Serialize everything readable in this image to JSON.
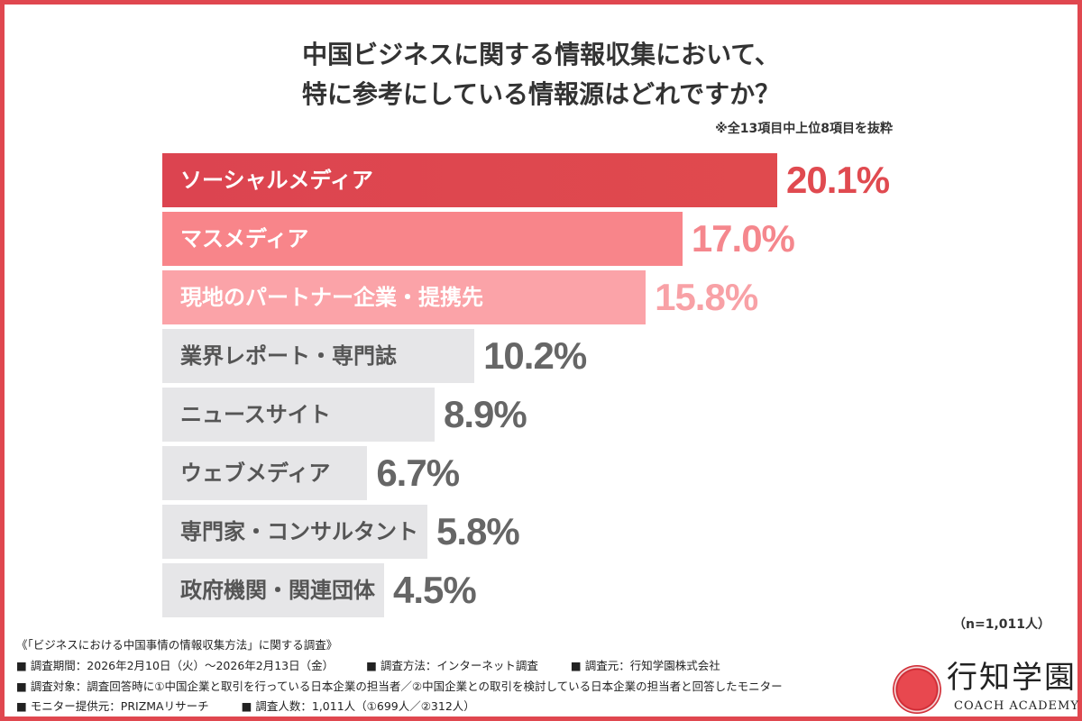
{
  "chart_data": {
    "type": "bar",
    "orientation": "horizontal",
    "title": "中国ビジネスに関する情報収集において、",
    "title_line2": "特に参考にしている情報源はどれですか？",
    "note": "※全13項目中上位8項目を抜粋",
    "categories": [
      "ソーシャルメディア",
      "マスメディア",
      "現地のパートナー企業・提携先",
      "業界レポート・専門誌",
      "ニュースサイト",
      "ウェブメディア",
      "専門家・コンサルタント",
      "政府機関・関連団体"
    ],
    "values": [
      20.1,
      17.0,
      15.8,
      10.2,
      8.9,
      6.7,
      5.8,
      4.5
    ],
    "value_labels": [
      "20.1%",
      "17.0%",
      "15.8%",
      "10.2%",
      "8.9%",
      "6.7%",
      "5.8%",
      "4.5%"
    ],
    "bar_colors": [
      "#dd4650",
      "#f8858a",
      "#fba3a8",
      "#e6e6e8",
      "#e6e6e8",
      "#e6e6e8",
      "#e6e6e8",
      "#e6e6e8"
    ],
    "label_colors": [
      "#ffffff",
      "#ffffff",
      "#ffffff",
      "#555555",
      "#555555",
      "#555555",
      "#555555",
      "#555555"
    ],
    "value_colors": [
      "#e04a50",
      "#f5878d",
      "#f8a1a6",
      "#666666",
      "#666666",
      "#666666",
      "#666666",
      "#666666"
    ],
    "sample": "（n=1,011人）"
  },
  "footer": {
    "survey_title": "《「ビジネスにおける中国事情の情報収集方法」に関する調査》",
    "period": "■ 調査期間：2026年2月10日（火）〜2026年2月13日（金）",
    "method": "■ 調査方法：インターネット調査",
    "source": "■ 調査元：行知学園株式会社",
    "target": "■ 調査対象：調査回答時に①中国企業と取引を行っている日本企業の担当者／②中国企業との取引を検討している日本企業の担当者と回答したモニター",
    "provider": "■ モニター提供元：PRIZMAリサーチ",
    "count": "■ 調査人数：1,011人（①699人／②312人）"
  },
  "logo": {
    "name": "行知学園",
    "sub": "COACH ACADEMY"
  },
  "colors": {
    "border": "#e0474f"
  }
}
